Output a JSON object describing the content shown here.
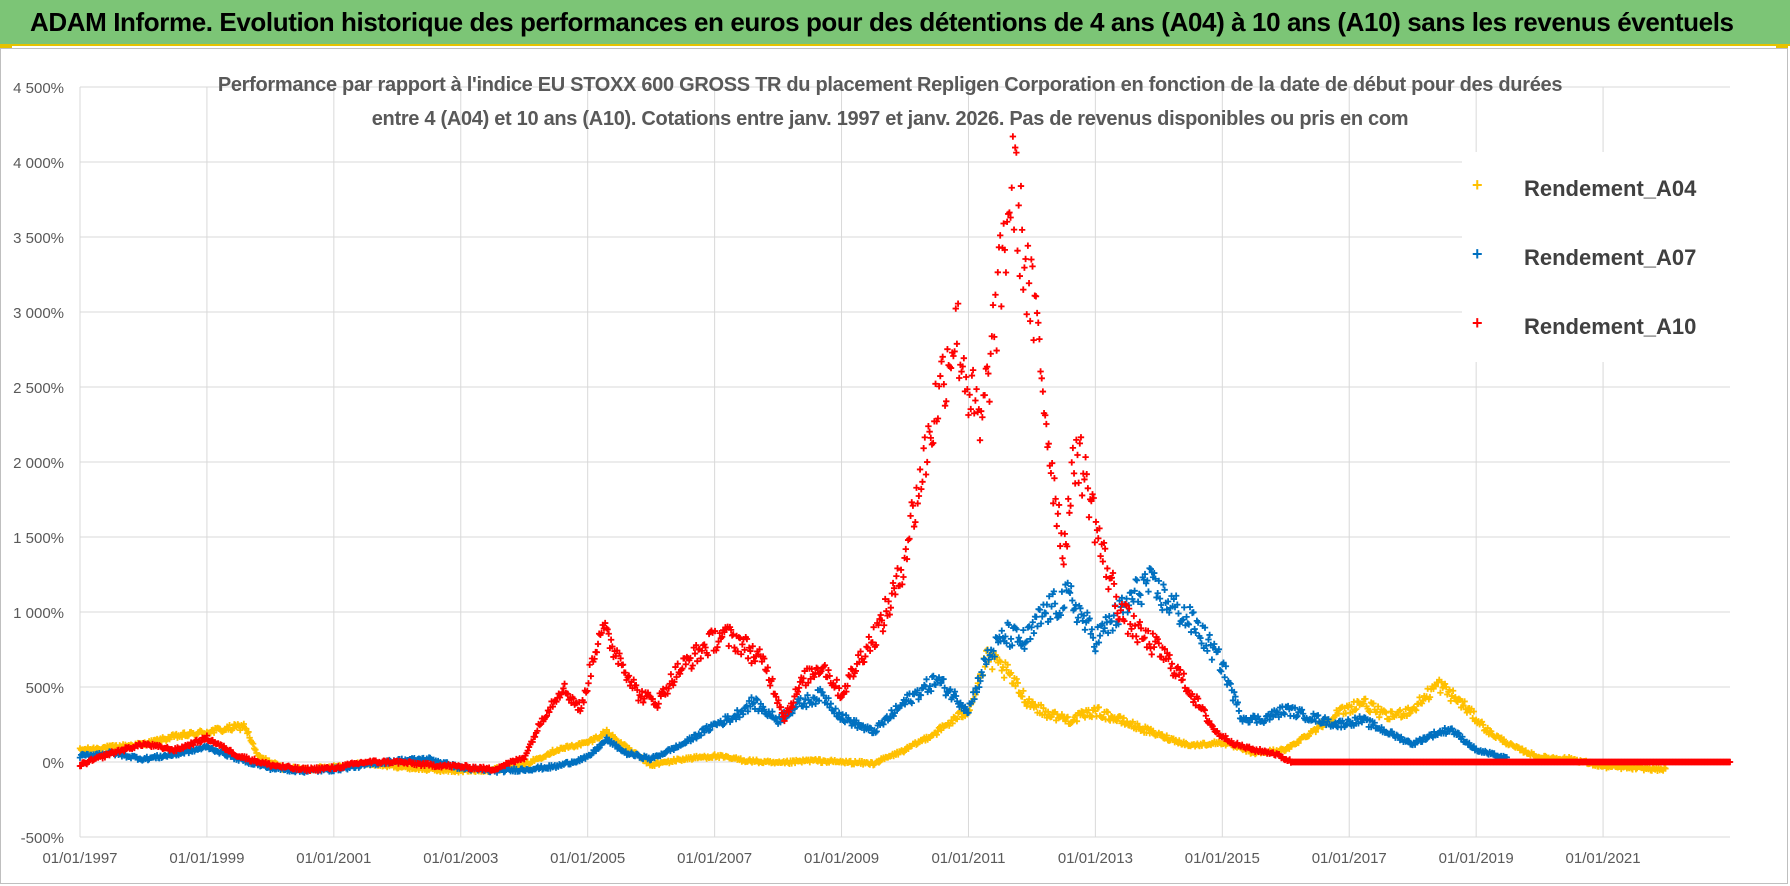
{
  "banner": {
    "title": "ADAM Informe. Evolution historique des performances en euros pour des détentions de 4 ans (A04) à 10 ans (A10) sans les revenus éventuels"
  },
  "chart_data": {
    "type": "scatter",
    "title_line1": "Performance par rapport à l'indice EU STOXX 600 GROSS TR  du placement Repligen Corporation en fonction de la date de début pour des durées",
    "title_line2": "entre 4 (A04) et 10 ans (A10). Cotations entre janv. 1997 et janv. 2026. Pas de revenus disponibles ou pris en com",
    "xlabel": "",
    "ylabel": "",
    "xlim": [
      1997.0,
      2023.0
    ],
    "ylim": [
      -500,
      4500
    ],
    "x_ticks": [
      "01/01/1997",
      "01/01/1999",
      "01/01/2001",
      "01/01/2003",
      "01/01/2005",
      "01/01/2007",
      "01/01/2009",
      "01/01/2011",
      "01/01/2013",
      "01/01/2015",
      "01/01/2017",
      "01/01/2019",
      "01/01/2021"
    ],
    "y_ticks": [
      "-500%",
      "0%",
      "500%",
      "1 000%",
      "1 500%",
      "2 000%",
      "2 500%",
      "3 000%",
      "3 500%",
      "4 000%",
      "4 500%"
    ],
    "grid": true,
    "legend_position": "top-right",
    "marker": "+",
    "series": [
      {
        "name": "Rendement_A04",
        "color": "#ffc000",
        "x": [
          1997.0,
          1997.5,
          1998.0,
          1998.5,
          1999.0,
          1999.3,
          1999.6,
          1999.8,
          2000.2,
          2000.6,
          2001.0,
          2001.5,
          2002.0,
          2002.5,
          2003.0,
          2003.5,
          2004.0,
          2004.5,
          2005.0,
          2005.3,
          2005.6,
          2006.0,
          2006.5,
          2007.0,
          2007.5,
          2008.0,
          2008.5,
          2009.0,
          2009.5,
          2010.0,
          2010.5,
          2011.0,
          2011.3,
          2011.6,
          2011.9,
          2012.2,
          2012.6,
          2013.0,
          2013.5,
          2014.0,
          2014.5,
          2015.0,
          2015.5,
          2016.0,
          2016.4,
          2016.8,
          2017.2,
          2017.6,
          2018.0,
          2018.4,
          2018.8,
          2019.2,
          2019.6,
          2020.0,
          2020.5,
          2021.0,
          2021.5,
          2022.0
        ],
        "y": [
          80,
          100,
          120,
          170,
          200,
          220,
          240,
          40,
          -40,
          -50,
          -30,
          -10,
          -30,
          -50,
          -60,
          -50,
          -20,
          80,
          130,
          200,
          100,
          -20,
          20,
          40,
          10,
          -10,
          10,
          0,
          -10,
          80,
          200,
          350,
          700,
          600,
          420,
          330,
          280,
          340,
          260,
          180,
          110,
          130,
          60,
          80,
          200,
          320,
          400,
          300,
          350,
          520,
          380,
          200,
          100,
          30,
          20,
          -30,
          -40,
          -50
        ]
      },
      {
        "name": "Rendement_A07",
        "color": "#0070c0",
        "x": [
          1997.0,
          1997.5,
          1998.0,
          1998.5,
          1999.0,
          1999.5,
          2000.0,
          2000.5,
          2001.0,
          2001.5,
          2002.0,
          2002.5,
          2003.0,
          2003.5,
          2004.0,
          2004.5,
          2005.0,
          2005.3,
          2005.6,
          2006.0,
          2006.5,
          2007.0,
          2007.3,
          2007.6,
          2008.0,
          2008.3,
          2008.7,
          2009.0,
          2009.5,
          2010.0,
          2010.5,
          2011.0,
          2011.3,
          2011.6,
          2011.9,
          2012.2,
          2012.6,
          2013.0,
          2013.4,
          2013.8,
          2014.2,
          2014.6,
          2015.0,
          2015.3,
          2015.6,
          2016.0,
          2016.4,
          2016.8,
          2017.2,
          2017.6,
          2018.0,
          2018.3,
          2018.6,
          2019.0,
          2019.5
        ],
        "y": [
          40,
          60,
          20,
          50,
          100,
          20,
          -40,
          -60,
          -50,
          -20,
          10,
          20,
          -40,
          -60,
          -50,
          -30,
          30,
          150,
          60,
          20,
          120,
          250,
          300,
          400,
          280,
          380,
          450,
          300,
          200,
          400,
          550,
          350,
          700,
          850,
          800,
          1000,
          1100,
          820,
          1000,
          1200,
          1050,
          900,
          650,
          300,
          280,
          350,
          300,
          250,
          280,
          200,
          120,
          180,
          220,
          80,
          20
        ]
      },
      {
        "name": "Rendement_A10",
        "color": "#ff0000",
        "x": [
          1997.0,
          1997.5,
          1998.0,
          1998.5,
          1999.0,
          1999.5,
          2000.0,
          2000.5,
          2001.0,
          2001.5,
          2002.0,
          2002.5,
          2003.0,
          2003.5,
          2004.0,
          2004.3,
          2004.6,
          2004.9,
          2005.2,
          2005.5,
          2005.8,
          2006.1,
          2006.4,
          2006.8,
          2007.1,
          2007.4,
          2007.8,
          2008.1,
          2008.4,
          2008.7,
          2009.0,
          2009.3,
          2009.6,
          2009.9,
          2010.2,
          2010.5,
          2010.8,
          2011.0,
          2011.2,
          2011.5,
          2011.7,
          2011.9,
          2012.1,
          2012.3,
          2012.5,
          2012.7,
          2012.9,
          2013.1,
          2013.4,
          2013.7,
          2014.0,
          2014.3,
          2014.6,
          2014.9,
          2015.2,
          2015.5,
          2015.8,
          2016.1
        ],
        "y": [
          -20,
          60,
          120,
          80,
          160,
          40,
          -20,
          -50,
          -40,
          0,
          0,
          -20,
          -30,
          -50,
          30,
          300,
          500,
          350,
          900,
          700,
          450,
          400,
          600,
          750,
          850,
          800,
          650,
          300,
          550,
          650,
          450,
          700,
          900,
          1200,
          1800,
          2400,
          2900,
          2500,
          2200,
          3200,
          3900,
          3300,
          2800,
          2000,
          1400,
          2100,
          1800,
          1400,
          1000,
          850,
          750,
          600,
          400,
          200,
          120,
          80,
          60,
          0
        ]
      }
    ],
    "a10_flat_segment": {
      "x_start": 2016.1,
      "x_end": 2023.0,
      "y": 0
    }
  }
}
